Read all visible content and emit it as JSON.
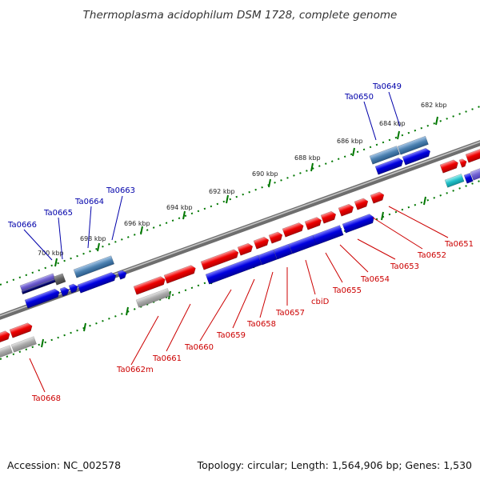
{
  "title": "Thermoplasma acidophilum DSM 1728, complete genome",
  "footer": {
    "accession": "Accession: NC_002578",
    "summary": "Topology: circular; Length: 1,564,906 bp; Genes: 1,530"
  },
  "colors": {
    "forward_gene": "#e60000",
    "reverse_gene": "#0000e0",
    "rna_gene": "#20c0c8",
    "pseudo_gene": "#a8a8a8",
    "navy_gene": "#000070",
    "steel_gene": "#4a80b0",
    "lavender_gene": "#7060d0",
    "dark_gray_gene": "#606060",
    "forward_label": "#cc0000",
    "reverse_label": "#0000aa",
    "tick": "#007700",
    "backbone": "#808080"
  },
  "scale_ticks": [
    "682 kbp",
    "684 kbp",
    "686 kbp",
    "688 kbp",
    "690 kbp",
    "692 kbp",
    "694 kbp",
    "696 kbp",
    "698 kbp",
    "700 kbp"
  ],
  "reverse_labels": [
    "Ta0649",
    "Ta0650",
    "Ta0663",
    "Ta0664",
    "Ta0665",
    "Ta0666"
  ],
  "forward_labels": [
    "Ta0651",
    "Ta0652",
    "Ta0653",
    "Ta0654",
    "Ta0655",
    "cbiD",
    "Ta0657",
    "Ta0658",
    "Ta0659",
    "Ta0660",
    "Ta0661",
    "Ta0662m",
    "Ta0668"
  ]
}
